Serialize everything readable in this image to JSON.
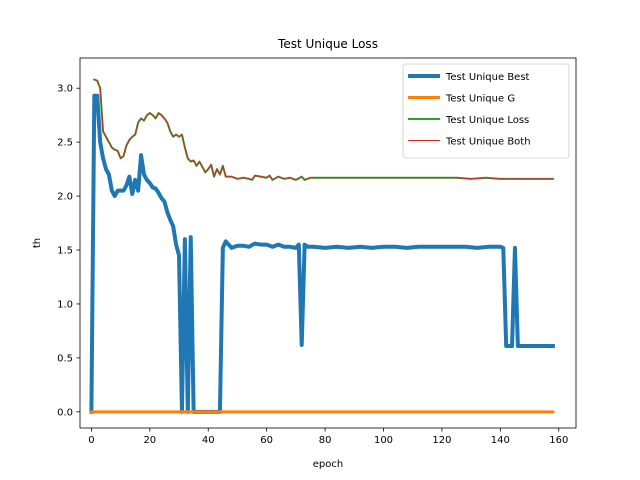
{
  "chart_data": {
    "type": "line",
    "title": "Test Unique Loss",
    "xlabel": "epoch",
    "ylabel": "th",
    "xlim": [
      -3.9,
      165.9
    ],
    "ylim": [
      -0.15,
      3.28
    ],
    "xticks": [
      0,
      20,
      40,
      60,
      80,
      100,
      120,
      140,
      160
    ],
    "yticks": [
      0.0,
      0.5,
      1.0,
      1.5,
      2.0,
      2.5,
      3.0
    ],
    "xtick_labels": [
      "0",
      "20",
      "40",
      "60",
      "80",
      "100",
      "120",
      "140",
      "160"
    ],
    "ytick_labels": [
      "0.0",
      "0.5",
      "1.0",
      "1.5",
      "2.0",
      "2.5",
      "3.0"
    ],
    "grid": false,
    "legend_position": "top-right",
    "series": [
      {
        "name": "Test Unique Best",
        "color": "#1f77b4",
        "line_width": 4,
        "points": [
          [
            0,
            0.0
          ],
          [
            1,
            2.93
          ],
          [
            2,
            2.93
          ],
          [
            3,
            2.5
          ],
          [
            4,
            2.35
          ],
          [
            5,
            2.25
          ],
          [
            6,
            2.2
          ],
          [
            7,
            2.05
          ],
          [
            8,
            2.0
          ],
          [
            9,
            2.05
          ],
          [
            10,
            2.05
          ],
          [
            11,
            2.05
          ],
          [
            12,
            2.1
          ],
          [
            13,
            2.18
          ],
          [
            14,
            2.02
          ],
          [
            15,
            2.15
          ],
          [
            16,
            2.05
          ],
          [
            17,
            2.38
          ],
          [
            18,
            2.2
          ],
          [
            19,
            2.15
          ],
          [
            20,
            2.12
          ],
          [
            21,
            2.08
          ],
          [
            22,
            2.07
          ],
          [
            23,
            2.03
          ],
          [
            24,
            1.98
          ],
          [
            25,
            1.95
          ],
          [
            26,
            1.85
          ],
          [
            27,
            1.78
          ],
          [
            28,
            1.72
          ],
          [
            29,
            1.55
          ],
          [
            30,
            1.45
          ],
          [
            31,
            0.0
          ],
          [
            32,
            1.6
          ],
          [
            33,
            0.0
          ],
          [
            34,
            1.62
          ],
          [
            35,
            0.0
          ],
          [
            36,
            0.0
          ],
          [
            38,
            0.0
          ],
          [
            40,
            0.0
          ],
          [
            42,
            0.0
          ],
          [
            44,
            0.0
          ],
          [
            45,
            1.52
          ],
          [
            46,
            1.58
          ],
          [
            47,
            1.55
          ],
          [
            48,
            1.52
          ],
          [
            50,
            1.54
          ],
          [
            52,
            1.54
          ],
          [
            54,
            1.53
          ],
          [
            56,
            1.56
          ],
          [
            58,
            1.55
          ],
          [
            60,
            1.55
          ],
          [
            62,
            1.53
          ],
          [
            64,
            1.55
          ],
          [
            66,
            1.53
          ],
          [
            68,
            1.53
          ],
          [
            70,
            1.52
          ],
          [
            71,
            1.55
          ],
          [
            72,
            0.62
          ],
          [
            73,
            1.55
          ],
          [
            74,
            1.53
          ],
          [
            76,
            1.53
          ],
          [
            80,
            1.52
          ],
          [
            84,
            1.53
          ],
          [
            88,
            1.52
          ],
          [
            92,
            1.53
          ],
          [
            96,
            1.52
          ],
          [
            100,
            1.53
          ],
          [
            104,
            1.53
          ],
          [
            108,
            1.52
          ],
          [
            112,
            1.53
          ],
          [
            116,
            1.53
          ],
          [
            120,
            1.53
          ],
          [
            124,
            1.53
          ],
          [
            128,
            1.53
          ],
          [
            132,
            1.52
          ],
          [
            136,
            1.53
          ],
          [
            140,
            1.53
          ],
          [
            141,
            1.52
          ],
          [
            142,
            0.61
          ],
          [
            144,
            0.61
          ],
          [
            145,
            1.52
          ],
          [
            146,
            0.61
          ],
          [
            150,
            0.61
          ],
          [
            155,
            0.61
          ],
          [
            158,
            0.61
          ]
        ]
      },
      {
        "name": "Test Unique G",
        "color": "#ff7f0e",
        "line_width": 3,
        "points": [
          [
            0,
            0.0
          ],
          [
            158,
            0.0
          ]
        ]
      },
      {
        "name": "Test Unique Loss",
        "color": "#2ca02c",
        "line_width": 2,
        "points": [
          [
            1,
            3.08
          ],
          [
            2,
            3.07
          ],
          [
            3,
            3.0
          ],
          [
            4,
            2.6
          ],
          [
            5,
            2.55
          ],
          [
            6,
            2.5
          ],
          [
            7,
            2.45
          ],
          [
            8,
            2.43
          ],
          [
            9,
            2.42
          ],
          [
            10,
            2.35
          ],
          [
            11,
            2.37
          ],
          [
            12,
            2.47
          ],
          [
            13,
            2.52
          ],
          [
            14,
            2.55
          ],
          [
            15,
            2.57
          ],
          [
            16,
            2.68
          ],
          [
            17,
            2.72
          ],
          [
            18,
            2.7
          ],
          [
            19,
            2.75
          ],
          [
            20,
            2.77
          ],
          [
            21,
            2.75
          ],
          [
            22,
            2.72
          ],
          [
            23,
            2.77
          ],
          [
            24,
            2.75
          ],
          [
            25,
            2.72
          ],
          [
            26,
            2.68
          ],
          [
            27,
            2.6
          ],
          [
            28,
            2.55
          ],
          [
            29,
            2.57
          ],
          [
            30,
            2.55
          ],
          [
            31,
            2.57
          ],
          [
            32,
            2.45
          ],
          [
            33,
            2.35
          ],
          [
            34,
            2.32
          ],
          [
            35,
            2.33
          ],
          [
            36,
            2.28
          ],
          [
            37,
            2.32
          ],
          [
            38,
            2.27
          ],
          [
            39,
            2.22
          ],
          [
            40,
            2.25
          ],
          [
            41,
            2.29
          ],
          [
            42,
            2.18
          ],
          [
            43,
            2.25
          ],
          [
            44,
            2.2
          ],
          [
            45,
            2.28
          ],
          [
            46,
            2.18
          ],
          [
            48,
            2.18
          ],
          [
            50,
            2.16
          ],
          [
            52,
            2.17
          ],
          [
            54,
            2.16
          ],
          [
            55,
            2.15
          ],
          [
            56,
            2.19
          ],
          [
            58,
            2.18
          ],
          [
            60,
            2.17
          ],
          [
            61,
            2.19
          ],
          [
            62,
            2.15
          ],
          [
            64,
            2.18
          ],
          [
            66,
            2.16
          ],
          [
            68,
            2.17
          ],
          [
            70,
            2.15
          ],
          [
            72,
            2.18
          ],
          [
            73,
            2.15
          ],
          [
            75,
            2.17
          ],
          [
            80,
            2.17
          ],
          [
            90,
            2.17
          ],
          [
            100,
            2.17
          ],
          [
            110,
            2.17
          ],
          [
            120,
            2.17
          ],
          [
            125,
            2.17
          ],
          [
            130,
            2.16
          ],
          [
            135,
            2.17
          ],
          [
            140,
            2.16
          ],
          [
            145,
            2.16
          ],
          [
            150,
            2.16
          ],
          [
            158,
            2.16
          ]
        ]
      },
      {
        "name": "Test Unique Both",
        "color": "#d62728",
        "line_width": 1,
        "points": [
          [
            1,
            3.08
          ],
          [
            2,
            3.07
          ],
          [
            3,
            3.0
          ],
          [
            4,
            2.6
          ],
          [
            5,
            2.55
          ],
          [
            6,
            2.5
          ],
          [
            7,
            2.45
          ],
          [
            8,
            2.43
          ],
          [
            9,
            2.42
          ],
          [
            10,
            2.35
          ],
          [
            11,
            2.37
          ],
          [
            12,
            2.47
          ],
          [
            13,
            2.52
          ],
          [
            14,
            2.55
          ],
          [
            15,
            2.57
          ],
          [
            16,
            2.68
          ],
          [
            17,
            2.72
          ],
          [
            18,
            2.7
          ],
          [
            19,
            2.75
          ],
          [
            20,
            2.77
          ],
          [
            21,
            2.75
          ],
          [
            22,
            2.72
          ],
          [
            23,
            2.77
          ],
          [
            24,
            2.75
          ],
          [
            25,
            2.72
          ],
          [
            26,
            2.68
          ],
          [
            27,
            2.6
          ],
          [
            28,
            2.55
          ],
          [
            29,
            2.57
          ],
          [
            30,
            2.55
          ],
          [
            31,
            2.57
          ],
          [
            32,
            2.45
          ],
          [
            33,
            2.35
          ],
          [
            34,
            2.32
          ],
          [
            35,
            2.33
          ],
          [
            36,
            2.28
          ],
          [
            37,
            2.32
          ],
          [
            38,
            2.27
          ],
          [
            39,
            2.22
          ],
          [
            40,
            2.25
          ],
          [
            41,
            2.29
          ],
          [
            42,
            2.18
          ],
          [
            43,
            2.25
          ],
          [
            44,
            2.2
          ],
          [
            45,
            2.28
          ],
          [
            46,
            2.18
          ],
          [
            48,
            2.18
          ],
          [
            50,
            2.16
          ],
          [
            52,
            2.17
          ],
          [
            54,
            2.16
          ],
          [
            55,
            2.15
          ],
          [
            56,
            2.19
          ],
          [
            58,
            2.18
          ],
          [
            60,
            2.17
          ],
          [
            61,
            2.19
          ],
          [
            62,
            2.15
          ],
          [
            64,
            2.18
          ],
          [
            66,
            2.16
          ],
          [
            68,
            2.17
          ],
          [
            70,
            2.15
          ],
          [
            72,
            2.18
          ],
          [
            73,
            2.15
          ],
          [
            75,
            2.17
          ],
          [
            80,
            2.17
          ],
          [
            90,
            2.17
          ],
          [
            100,
            2.17
          ],
          [
            110,
            2.17
          ],
          [
            120,
            2.17
          ],
          [
            125,
            2.17
          ],
          [
            130,
            2.16
          ],
          [
            135,
            2.17
          ],
          [
            140,
            2.16
          ],
          [
            145,
            2.16
          ],
          [
            150,
            2.16
          ],
          [
            158,
            2.16
          ]
        ]
      }
    ]
  }
}
